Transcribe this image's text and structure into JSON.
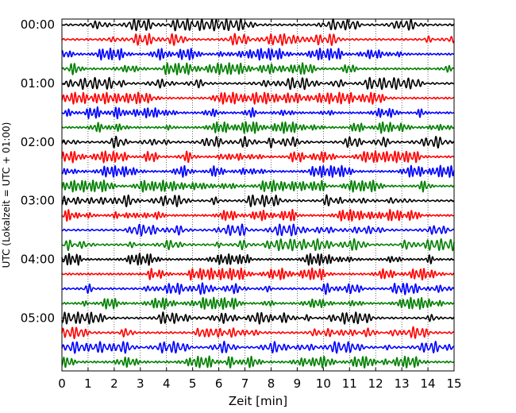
{
  "chart_data": {
    "type": "line",
    "title": "",
    "xlabel": "Zeit  [min]",
    "ylabel": "UTC (Lokalzeit = UTC + 01:00)",
    "xlim": [
      0,
      15
    ],
    "x_ticks": [
      "0",
      "1",
      "2",
      "3",
      "4",
      "5",
      "6",
      "7",
      "8",
      "9",
      "10",
      "11",
      "12",
      "13",
      "14",
      "15"
    ],
    "y_tick_labels": [
      "00:00",
      "01:00",
      "02:00",
      "03:00",
      "04:00",
      "05:00"
    ],
    "grid": "vertical dotted",
    "legend": "none",
    "trace_count": 24,
    "trace_interval_minutes": 15,
    "trace_colors": [
      "#000000",
      "#ff0000",
      "#0000ff",
      "#008000"
    ]
  }
}
